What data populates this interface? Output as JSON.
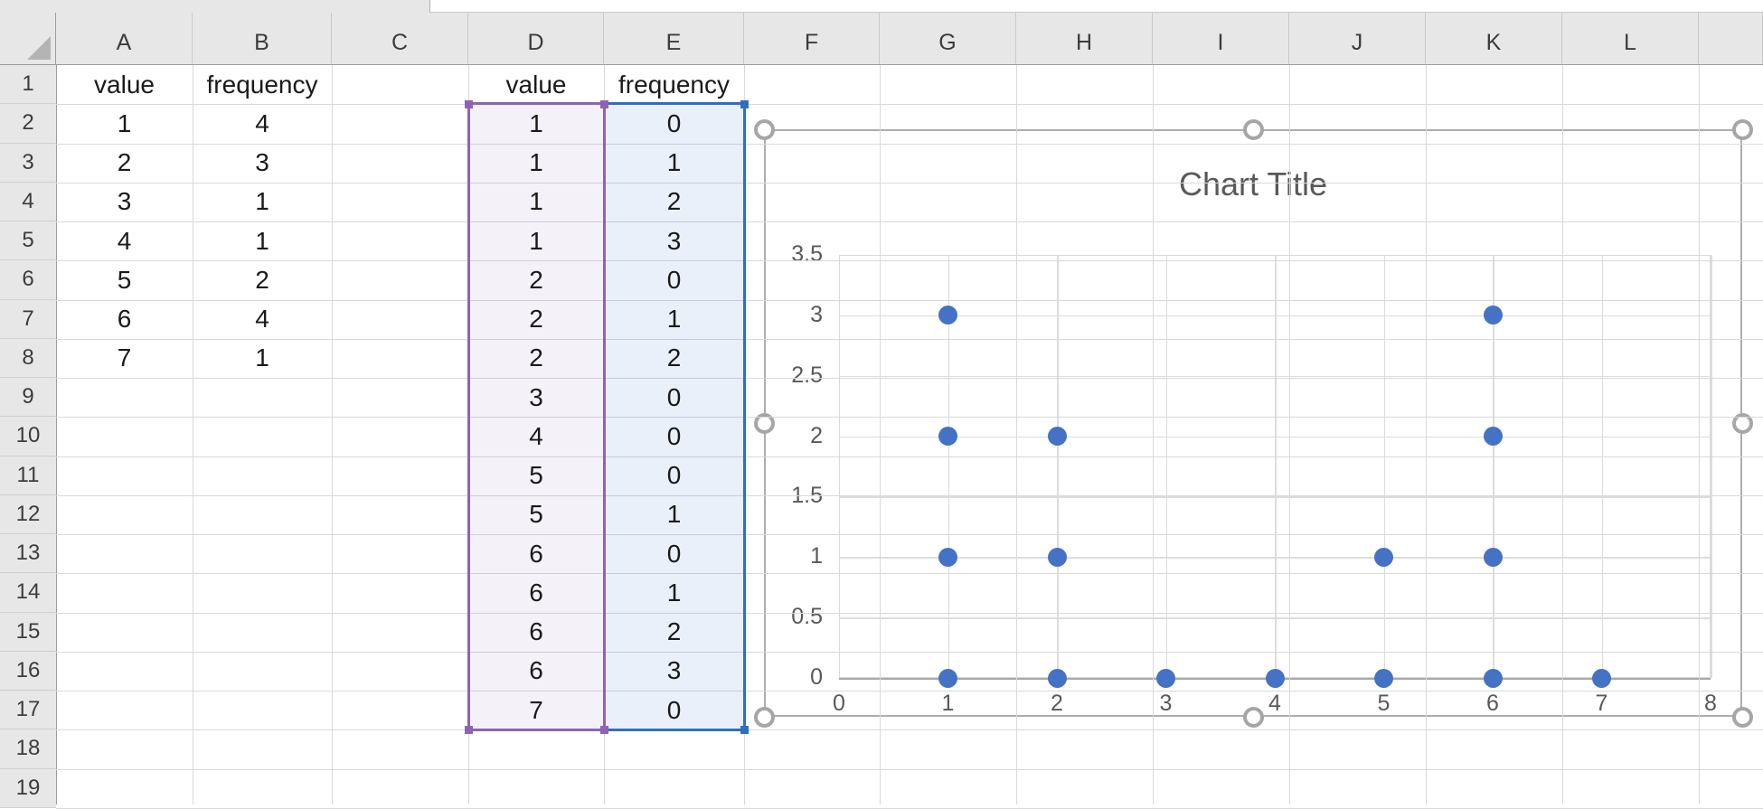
{
  "sheet": {
    "column_headers": [
      "A",
      "B",
      "C",
      "D",
      "E",
      "F",
      "G",
      "H",
      "I",
      "J",
      "K",
      "L"
    ],
    "row_headers": [
      "1",
      "2",
      "3",
      "4",
      "5",
      "6",
      "7",
      "8",
      "9",
      "10",
      "11",
      "12",
      "13",
      "14",
      "15",
      "16",
      "17",
      "18",
      "19"
    ],
    "table1": {
      "header_value": "value",
      "header_frequency": "frequency",
      "rows": [
        [
          1,
          4
        ],
        [
          2,
          3
        ],
        [
          3,
          1
        ],
        [
          4,
          1
        ],
        [
          5,
          2
        ],
        [
          6,
          4
        ],
        [
          7,
          1
        ]
      ]
    },
    "table2": {
      "header_value": "value",
      "header_frequency": "frequency",
      "values": [
        1,
        1,
        1,
        1,
        2,
        2,
        2,
        3,
        4,
        5,
        5,
        6,
        6,
        6,
        6,
        7
      ],
      "frequencies": [
        0,
        1,
        2,
        3,
        0,
        1,
        2,
        0,
        0,
        0,
        1,
        0,
        1,
        2,
        3,
        0
      ]
    },
    "selection": {
      "values_border_color": "#8e63b4",
      "values_fill_color": "rgba(142,99,180,0.09)",
      "frequencies_border_color": "#2f6fc1",
      "frequencies_fill_color": "rgba(47,111,193,0.10)"
    }
  },
  "chart_data": {
    "type": "scatter",
    "title": "Chart Title",
    "points": [
      [
        1,
        0
      ],
      [
        1,
        1
      ],
      [
        1,
        2
      ],
      [
        1,
        3
      ],
      [
        2,
        0
      ],
      [
        2,
        1
      ],
      [
        2,
        2
      ],
      [
        3,
        0
      ],
      [
        4,
        0
      ],
      [
        5,
        0
      ],
      [
        5,
        1
      ],
      [
        6,
        0
      ],
      [
        6,
        1
      ],
      [
        6,
        2
      ],
      [
        6,
        3
      ],
      [
        7,
        0
      ]
    ],
    "x_tick_labels": [
      "0",
      "1",
      "2",
      "3",
      "4",
      "5",
      "6",
      "7",
      "8"
    ],
    "y_tick_labels": [
      "0",
      "0.5",
      "1",
      "1.5",
      "2",
      "2.5",
      "3",
      "3.5"
    ],
    "xlim": [
      0,
      8
    ],
    "ylim": [
      0,
      3.5
    ],
    "grid": true,
    "legend": false,
    "marker_color": "#4472c4",
    "title_color": "#595959",
    "axis_text_color": "#595959"
  }
}
